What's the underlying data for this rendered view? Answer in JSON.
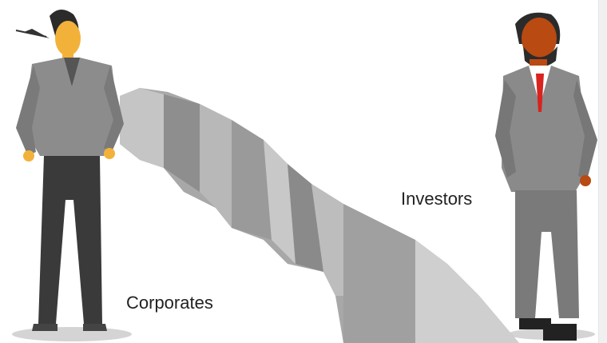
{
  "labels": {
    "corporates": "Corporates",
    "investors": "Investors"
  },
  "colors": {
    "background": "#ffffff",
    "cliff_light": "#c9c9c9",
    "cliff_mid": "#b0b0b0",
    "cliff_dark": "#8e8e8e",
    "suit_gray": "#8a8a8a",
    "pants_dark": "#3a3a3a",
    "woman_skin": "#f2b23a",
    "man_skin": "#b94a12",
    "tie_red": "#d8231f"
  },
  "icons": {
    "woman": "businesswoman-figure",
    "man": "businessman-figure",
    "gap": "cliff-gap"
  }
}
